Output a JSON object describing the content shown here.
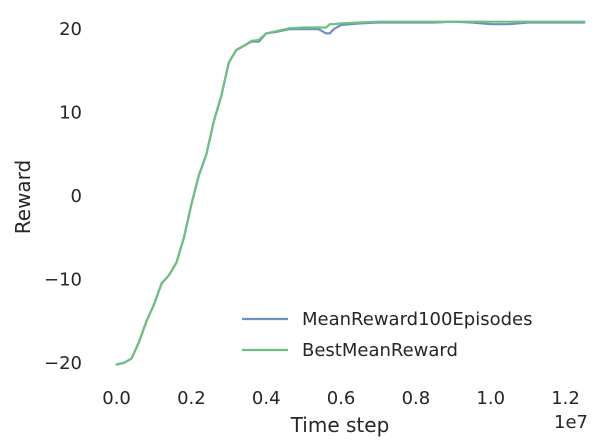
{
  "chart_data": {
    "type": "line",
    "title": "",
    "xlabel": "Time step",
    "ylabel": "Reward",
    "x_offset_label": "1e7",
    "xlim": [
      -0.055,
      1.26
    ],
    "ylim": [
      -23.5,
      23.5
    ],
    "x_ticks": [
      0.0,
      0.2,
      0.4,
      0.6,
      0.8,
      1.0,
      1.2
    ],
    "x_tick_labels": [
      "0.0",
      "0.2",
      "0.4",
      "0.6",
      "0.8",
      "1.0",
      "1.2"
    ],
    "y_ticks": [
      -20,
      -10,
      0,
      10,
      20
    ],
    "y_tick_labels": [
      "−20",
      "−10",
      "0",
      "10",
      "20"
    ],
    "grid": false,
    "legend_position": "lower-right",
    "series": [
      {
        "name": "MeanReward100Episodes",
        "color": "#6a8fc9",
        "x": [
          0.0,
          0.02,
          0.04,
          0.06,
          0.08,
          0.1,
          0.12,
          0.14,
          0.16,
          0.18,
          0.2,
          0.22,
          0.24,
          0.26,
          0.28,
          0.3,
          0.32,
          0.34,
          0.36,
          0.38,
          0.4,
          0.43,
          0.46,
          0.5,
          0.54,
          0.56,
          0.57,
          0.58,
          0.6,
          0.65,
          0.7,
          0.75,
          0.8,
          0.85,
          0.9,
          0.95,
          1.0,
          1.05,
          1.1,
          1.15,
          1.2,
          1.25
        ],
        "y": [
          -20.2,
          -20.0,
          -19.5,
          -17.5,
          -15.0,
          -13.0,
          -10.5,
          -9.5,
          -8.0,
          -5.0,
          -1.0,
          2.5,
          5.0,
          9.0,
          12.0,
          16.0,
          17.5,
          18.0,
          18.5,
          18.5,
          19.5,
          19.7,
          20.0,
          20.0,
          20.0,
          19.5,
          19.5,
          20.0,
          20.5,
          20.7,
          20.8,
          20.8,
          20.8,
          20.8,
          20.9,
          20.8,
          20.6,
          20.6,
          20.8,
          20.8,
          20.8,
          20.8
        ]
      },
      {
        "name": "BestMeanReward",
        "color": "#6ec07f",
        "x": [
          0.0,
          0.02,
          0.04,
          0.06,
          0.08,
          0.1,
          0.12,
          0.14,
          0.16,
          0.18,
          0.2,
          0.22,
          0.24,
          0.26,
          0.28,
          0.3,
          0.32,
          0.34,
          0.36,
          0.38,
          0.4,
          0.43,
          0.46,
          0.5,
          0.54,
          0.56,
          0.57,
          0.58,
          0.6,
          0.65,
          0.7,
          0.75,
          0.8,
          0.85,
          0.9,
          0.95,
          1.0,
          1.05,
          1.1,
          1.15,
          1.2,
          1.25
        ],
        "y": [
          -20.2,
          -20.0,
          -19.5,
          -17.5,
          -15.0,
          -13.0,
          -10.5,
          -9.5,
          -8.0,
          -5.0,
          -1.0,
          2.5,
          5.0,
          9.0,
          12.0,
          16.0,
          17.5,
          18.0,
          18.6,
          18.7,
          19.5,
          19.8,
          20.1,
          20.2,
          20.2,
          20.2,
          20.6,
          20.6,
          20.7,
          20.8,
          20.9,
          20.9,
          20.9,
          20.9,
          20.9,
          20.9,
          20.9,
          20.9,
          20.9,
          20.9,
          20.9,
          20.9
        ]
      }
    ]
  }
}
